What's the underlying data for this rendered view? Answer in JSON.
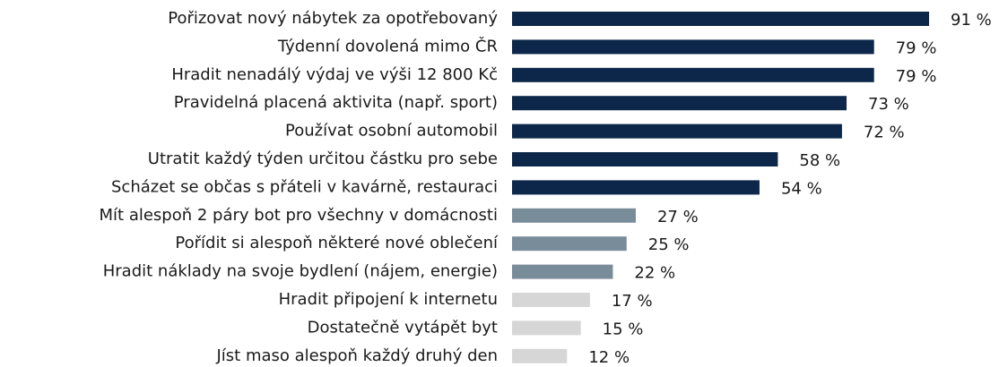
{
  "chart_data": {
    "type": "barh",
    "categories": [
      "Pořizovat nový nábytek za opotřebovaný",
      "Týdenní dovolená mimo ČR",
      "Hradit nenadálý výdaj ve výši 12 800 Kč",
      "Pravidelná placená aktivita (např. sport)",
      "Používat osobní automobil",
      "Utratit každý týden určitou částku pro sebe",
      "Scházet se občas s přáteli v kavárně, restauraci",
      "Mít alespoň 2 páry bot pro všechny v domácnosti",
      "Pořídit si alespoň některé nové oblečení",
      "Hradit náklady na svoje bydlení (nájem, energie)",
      "Hradit připojení k internetu",
      "Dostatečně vytápět byt",
      "Jíst maso alespoň každý druhý den"
    ],
    "values": [
      91,
      79,
      79,
      73,
      72,
      58,
      54,
      27,
      25,
      22,
      17,
      15,
      12
    ],
    "value_labels": [
      "91 %",
      "79 %",
      "79 %",
      "73 %",
      "72 %",
      "58 %",
      "54 %",
      "27 %",
      "25 %",
      "22 %",
      "17 %",
      "15 %",
      "12 %"
    ],
    "colors": [
      "#0c2749",
      "#0c2749",
      "#0c2749",
      "#0c2749",
      "#0c2749",
      "#0c2749",
      "#0c2749",
      "#798c9a",
      "#798c9a",
      "#798c9a",
      "#d6d6d6",
      "#d6d6d6",
      "#d6d6d6"
    ]
  }
}
